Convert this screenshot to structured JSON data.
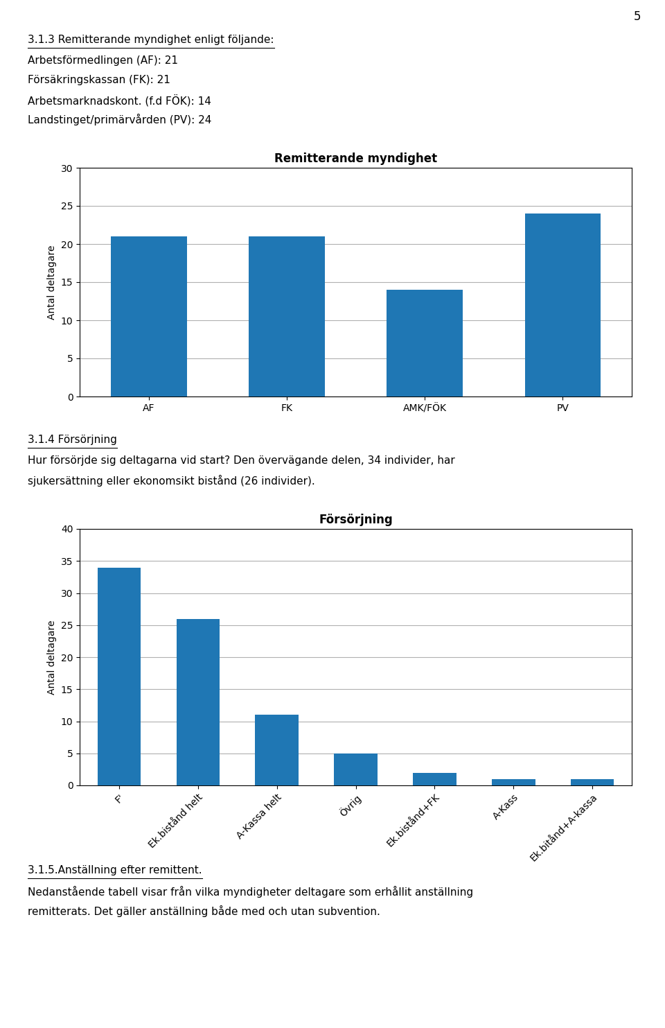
{
  "page_number": "5",
  "text_blocks": [
    {
      "heading": "3.1.3 Remitterande myndighet enligt följande:",
      "lines": [
        "Arbetsförmedlingen (AF): 21",
        "Försäkringskassan (FK): 21",
        "Arbetsmarknadskont. (f.d FÖK): 14",
        "Landstinget/primärvården (PV): 24"
      ]
    },
    {
      "heading": "3.1.4 Försörjning",
      "lines": [
        "Hur försörjde sig deltagarna vid start? Den övervägande delen, 34 individer, har",
        "sjukersättning eller ekonomsikt bistånd (26 individer)."
      ]
    },
    {
      "heading": "3.1.5.Anställning efter remittent.",
      "lines": [
        "Nedanstående tabell visar från vilka myndigheter deltagare som erhållit anställning",
        "remitterats. Det gäller anställning både med och utan subvention."
      ]
    }
  ],
  "chart_data": [
    {
      "type": "bar",
      "title": "Remitterande myndighet",
      "ylabel": "Antal deltagare",
      "categories": [
        "AF",
        "FK",
        "AMK/FÖK",
        "PV"
      ],
      "values": [
        21,
        21,
        14,
        24
      ],
      "ylim": [
        0,
        30
      ],
      "yticks": [
        0,
        5,
        10,
        15,
        20,
        25,
        30
      ],
      "grid": true
    },
    {
      "type": "bar",
      "title": "Försörjning",
      "ylabel": "Antal deltagare",
      "categories": [
        "F'",
        "Ek.bistånd helt",
        "A-Kassa helt",
        "Övrig",
        "Ek.bistånd+FK",
        "A-Kass",
        "Ek.bitånd+A-kassa"
      ],
      "values": [
        34,
        26,
        11,
        5,
        2,
        1,
        1
      ],
      "ylim": [
        0,
        40
      ],
      "yticks": [
        0,
        5,
        10,
        15,
        20,
        25,
        30,
        35,
        40
      ],
      "grid": true
    }
  ]
}
